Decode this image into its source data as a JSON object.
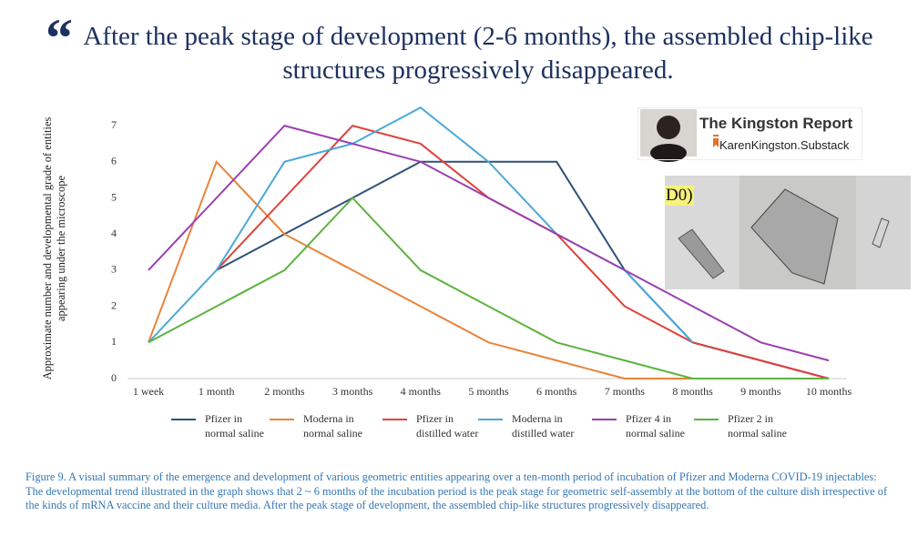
{
  "quote_mark": "“",
  "title": "After the peak stage of  development (2-6 months), the assembled chip-like structures progressively disappeared.",
  "badge": {
    "name": "The Kingston Report",
    "site": "KarenKingston.Substack"
  },
  "image_label": "D0)",
  "caption": "Figure 9. A visual summary of the emergence and development of various geometric entities appearing over a ten-month period of incubation of Pfizer and Moderna COVID-19 injectables: The developmental trend illustrated in the graph shows that 2 ~ 6 months of the incubation period is the peak stage for geometric self-assembly at the bottom of the culture dish irrespective of the kinds of mRNA vaccine and their culture media. After the peak stage of development, the assembled chip-like structures progressively disappeared.",
  "chart_data": {
    "type": "line",
    "ylabel": "Approximate number and developmental grade of entities appearing under the microscope",
    "categories": [
      "1 week",
      "1 month",
      "2 months",
      "3 months",
      "4 months",
      "5 months",
      "6 months",
      "7 months",
      "8 months",
      "9 months",
      "10 months"
    ],
    "ylim": [
      0,
      8
    ],
    "yticks": [
      0,
      1,
      2,
      3,
      4,
      5,
      6,
      7
    ],
    "grid": false,
    "series": [
      {
        "name": "Pfizer in normal saline",
        "color": "#2f5178",
        "values": [
          null,
          3,
          4,
          5,
          6,
          6,
          6,
          3,
          1,
          0.5,
          0
        ]
      },
      {
        "name": "Moderna in normal saline",
        "color": "#e8843a",
        "values": [
          1,
          6,
          4,
          3,
          2,
          1,
          0.5,
          0,
          0,
          0,
          0
        ]
      },
      {
        "name": "Pfizer in distilled water",
        "color": "#e0413a",
        "values": [
          null,
          3,
          5,
          7,
          6.5,
          5,
          4,
          2,
          1,
          0.5,
          0
        ]
      },
      {
        "name": "Moderna in distilled water",
        "color": "#4aa9d9",
        "values": [
          1,
          3,
          6,
          6.5,
          7.5,
          6,
          4,
          3,
          1,
          null,
          null
        ]
      },
      {
        "name": "Pfizer 4 in normal saline",
        "color": "#9b3fb0",
        "values": [
          3,
          5,
          7,
          6.5,
          6,
          5,
          4,
          3,
          2,
          1,
          0.5
        ]
      },
      {
        "name": "Pfizer 2 in normal saline",
        "color": "#5cb340",
        "values": [
          1,
          2,
          3,
          5,
          3,
          2,
          1,
          0.5,
          0,
          0,
          0
        ]
      }
    ]
  }
}
